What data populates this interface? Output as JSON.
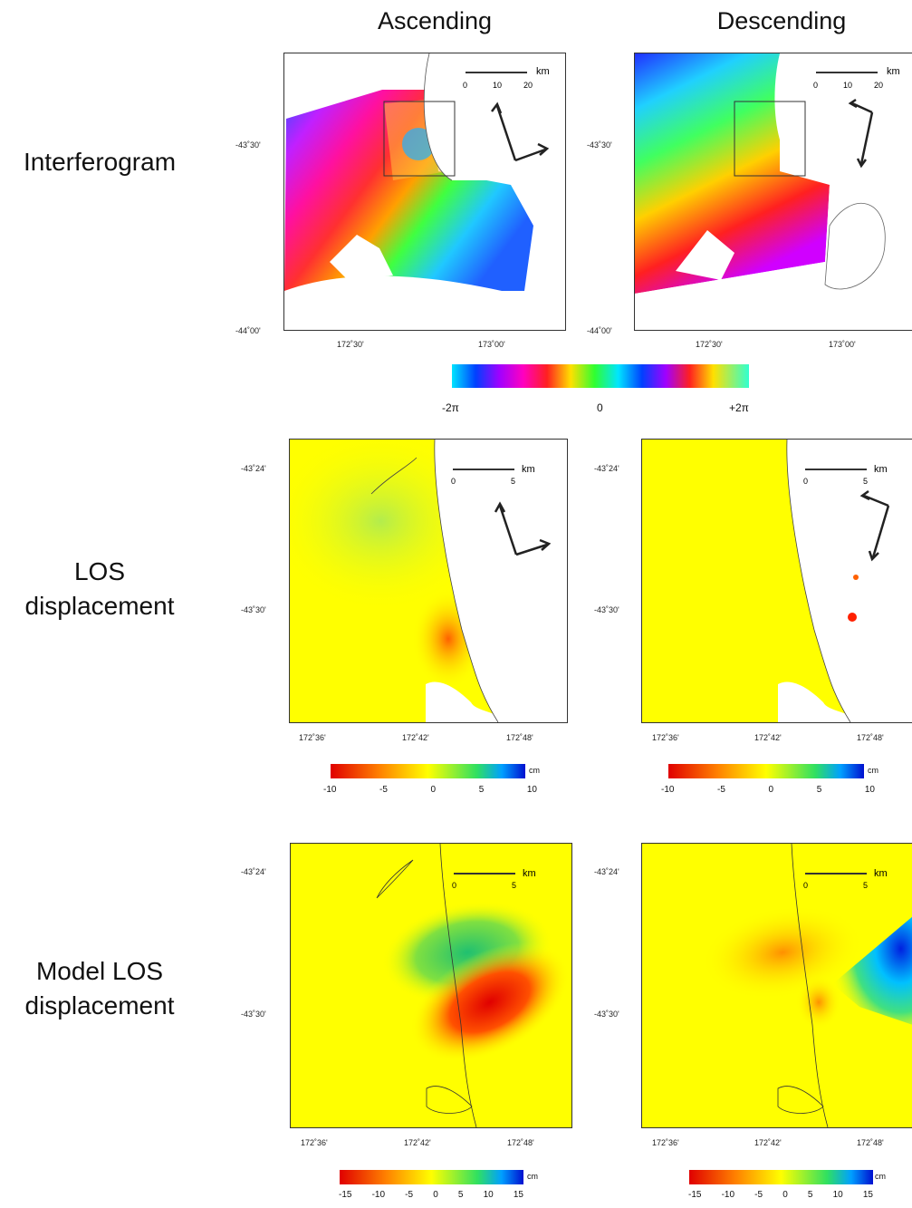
{
  "columns": {
    "ascending": "Ascending",
    "descending": "Descending"
  },
  "rows": {
    "interferogram": "Interferogram",
    "los_line1": "LOS",
    "los_line2": "displacement",
    "model_line1": "Model LOS",
    "model_line2": "displacement"
  },
  "row1": {
    "lat_top": "-43˚30'",
    "lat_bottom": "-44˚00'",
    "lon_left": "172˚30'",
    "lon_right": "173˚00'",
    "scale_unit": "km",
    "scale_ticks": [
      "0",
      "10",
      "20"
    ]
  },
  "phase_bar": {
    "min": "-2π",
    "mid": "0",
    "max": "+2π"
  },
  "row2": {
    "lat_top": "-43˚24'",
    "lat_bottom": "-43˚30'",
    "lon": [
      "172˚36'",
      "172˚42'",
      "172˚48'"
    ],
    "scale_unit": "km",
    "scale_ticks": [
      "0",
      "5"
    ],
    "cbar_unit": "cm",
    "cbar_ticks": [
      "-10",
      "-5",
      "0",
      "5",
      "10"
    ]
  },
  "row3": {
    "lat_top": "-43˚24'",
    "lat_bottom": "-43˚30'",
    "lon": [
      "172˚36'",
      "172˚42'",
      "172˚48'"
    ],
    "scale_unit": "km",
    "scale_ticks": [
      "0",
      "5"
    ],
    "cbar_unit": "cm",
    "cbar_ticks": [
      "-15",
      "-10",
      "-5",
      "0",
      "5",
      "10",
      "15"
    ]
  }
}
